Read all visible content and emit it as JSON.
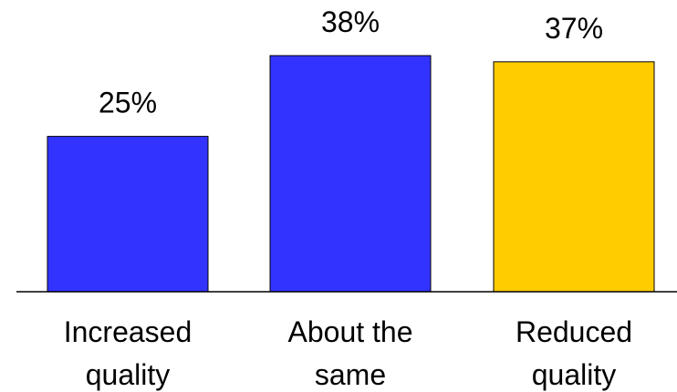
{
  "chart_data": {
    "type": "bar",
    "categories": [
      [
        "Increased",
        "quality"
      ],
      [
        "About the",
        "same"
      ],
      [
        "Reduced",
        "quality"
      ]
    ],
    "values": [
      25,
      38,
      37
    ],
    "value_labels": [
      "25%",
      "38%",
      "37%"
    ],
    "colors": [
      "#3333ff",
      "#3333ff",
      "#ffcc00"
    ],
    "ylim": [
      0,
      38
    ],
    "grid": false,
    "legend": "none"
  }
}
